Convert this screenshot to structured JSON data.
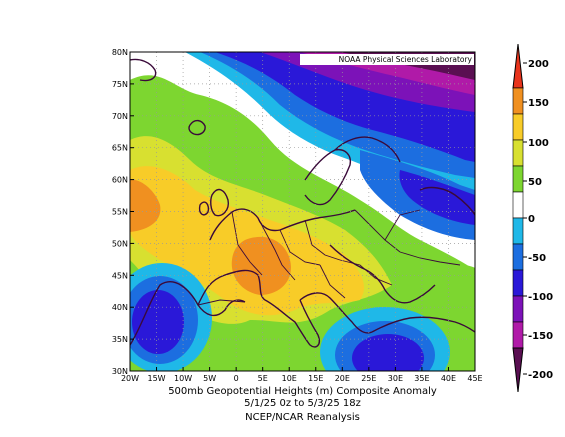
{
  "credit": "NOAA Physical Sciences Laboratory",
  "caption": {
    "line1": "500mb Geopotential Heights (m)    Composite Anomaly",
    "line2": "5/1/25 0z  to 5/3/25 18z",
    "line3": "NCEP/NCAR Reanalysis"
  },
  "map": {
    "lon_range": [
      -20,
      45
    ],
    "lat_range": [
      30,
      80
    ],
    "lon_ticks": [
      "20W",
      "15W",
      "10W",
      "5W",
      "0",
      "5E",
      "10E",
      "15E",
      "20E",
      "25E",
      "30E",
      "35E",
      "40E",
      "45E"
    ],
    "lat_ticks": [
      "30N",
      "35N",
      "40N",
      "45N",
      "50N",
      "55N",
      "60N",
      "65N",
      "70N",
      "75N",
      "80N"
    ],
    "grid": "dotted",
    "anomaly_features": [
      {
        "type": "positive",
        "lon": 5,
        "lat": 47,
        "peak": 125
      },
      {
        "type": "positive",
        "lon": -18,
        "lat": 56,
        "peak": 105
      },
      {
        "type": "negative",
        "lon": 30,
        "lat": 78,
        "peak": -175
      },
      {
        "type": "negative",
        "lon": -15,
        "lat": 38,
        "peak": -115
      },
      {
        "type": "negative",
        "lon": 27,
        "lat": 32,
        "peak": -115
      },
      {
        "type": "negative",
        "lon": 25,
        "lat": 62,
        "peak": -90
      }
    ]
  },
  "colorbar": {
    "levels": [
      "200",
      "150",
      "100",
      "50",
      "0",
      "-50",
      "-100",
      "-150",
      "-200"
    ],
    "colors": [
      "#e8341c",
      "#f09020",
      "#f8cc28",
      "#d8e030",
      "#7dd630",
      "#ffffff",
      "#1fb8e8",
      "#1c6ee0",
      "#2a18d8",
      "#7c12b8",
      "#b01aa8",
      "#5a0f52"
    ]
  }
}
